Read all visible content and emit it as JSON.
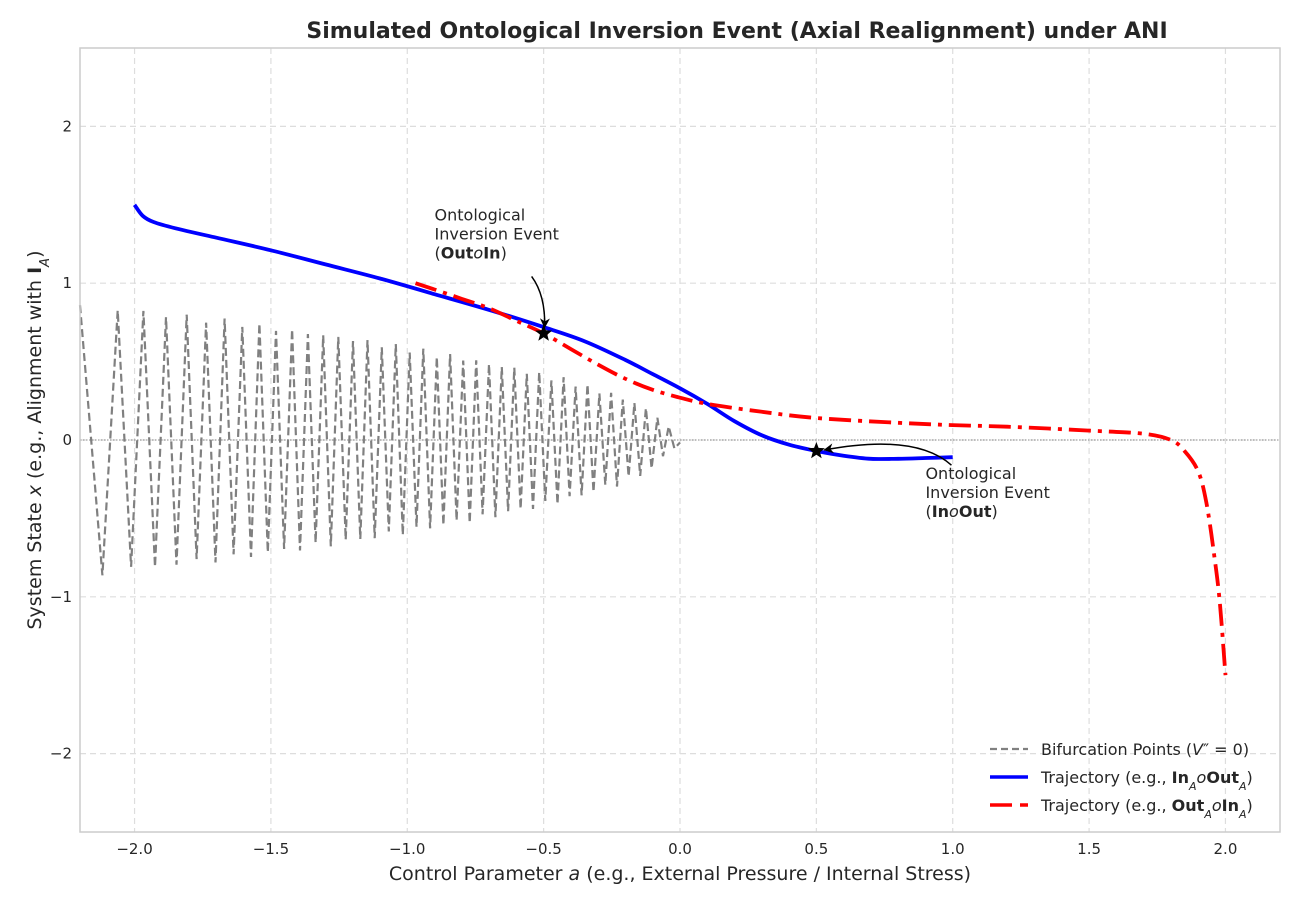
{
  "chart_data": {
    "type": "line",
    "title": "Simulated Ontological Inversion Event (Axial Realignment) under ANI",
    "xlabel": "Control Parameter a (e.g., External Pressure / Internal Stress)",
    "ylabel": "System State x (e.g., Alignment with I_A)",
    "xlim": [
      -2.2,
      2.2
    ],
    "ylim": [
      -2.5,
      2.5
    ],
    "x_ticks": [
      -2.0,
      -1.5,
      -1.0,
      -0.5,
      0.0,
      0.5,
      1.0,
      1.5,
      2.0
    ],
    "x_tick_labels": [
      "−2.0",
      "−1.5",
      "−1.0",
      "−0.5",
      "0.0",
      "0.5",
      "1.0",
      "1.5",
      "2.0"
    ],
    "y_ticks": [
      2,
      1,
      0,
      -1,
      -2
    ],
    "y_tick_labels": [
      "2",
      "1",
      "0",
      "−1",
      "−2"
    ],
    "grid": true,
    "legend_position": "bottom-right",
    "legend": [
      {
        "label": "Bifurcation Points (V″ = 0)",
        "style": "dashed",
        "color": "#808080"
      },
      {
        "label": "Trajectory (e.g., In_A∘Out_A)",
        "style": "solid",
        "color": "#0000ff"
      },
      {
        "label": "Trajectory (e.g., Out_A∘In_A)",
        "style": "dashdot",
        "color": "#ff0000"
      }
    ],
    "series": [
      {
        "name": "Bifurcation Points (V″ = 0)",
        "style": "dashed",
        "color": "#808080",
        "envelope": {
          "x": [
            -2.2,
            -2.0,
            -1.8,
            -1.6,
            -1.4,
            -1.2,
            -1.0,
            -0.8,
            -0.6,
            -0.4,
            -0.2,
            -0.1,
            0.0
          ],
          "y_upper": [
            0.86,
            0.82,
            0.78,
            0.74,
            0.69,
            0.64,
            0.58,
            0.52,
            0.45,
            0.37,
            0.26,
            0.18,
            0.0
          ],
          "y_lower": [
            -0.86,
            -0.82,
            -0.78,
            -0.74,
            -0.69,
            -0.64,
            -0.58,
            -0.52,
            -0.45,
            -0.37,
            -0.26,
            -0.18,
            0.0
          ]
        }
      },
      {
        "name": "Trajectory (e.g., In_A∘Out_A)",
        "style": "solid",
        "color": "#0000ff",
        "x": [
          -2.0,
          -1.97,
          -1.93,
          -1.85,
          -1.7,
          -1.5,
          -1.3,
          -1.1,
          -0.9,
          -0.7,
          -0.5,
          -0.35,
          -0.2,
          -0.1,
          0.0,
          0.1,
          0.2,
          0.3,
          0.4,
          0.5,
          0.6,
          0.7,
          0.8,
          0.9,
          1.0
        ],
        "y": [
          1.5,
          1.43,
          1.39,
          1.35,
          1.29,
          1.21,
          1.12,
          1.03,
          0.93,
          0.83,
          0.72,
          0.63,
          0.51,
          0.42,
          0.33,
          0.23,
          0.12,
          0.03,
          -0.03,
          -0.07,
          -0.1,
          -0.12,
          -0.12,
          -0.115,
          -0.11
        ]
      },
      {
        "name": "Trajectory (e.g., Out_A∘In_A)",
        "style": "dashdot",
        "color": "#ff0000",
        "x": [
          -0.97,
          -0.9,
          -0.8,
          -0.7,
          -0.6,
          -0.5,
          -0.4,
          -0.3,
          -0.2,
          -0.1,
          0.0,
          0.1,
          0.3,
          0.5,
          0.8,
          1.0,
          1.2,
          1.5,
          1.7,
          1.8,
          1.85,
          1.9,
          1.93,
          1.96,
          1.98,
          2.0
        ],
        "y": [
          1.0,
          0.96,
          0.9,
          0.84,
          0.76,
          0.68,
          0.58,
          0.48,
          0.39,
          0.32,
          0.27,
          0.23,
          0.18,
          0.14,
          0.11,
          0.095,
          0.085,
          0.06,
          0.04,
          0.0,
          -0.07,
          -0.2,
          -0.4,
          -0.75,
          -1.05,
          -1.5
        ]
      }
    ],
    "markers": [
      {
        "x": -0.5,
        "y": 0.68,
        "symbol": "star"
      },
      {
        "x": 0.5,
        "y": -0.07,
        "symbol": "star"
      }
    ],
    "annotations": [
      {
        "lines": [
          "Ontological",
          "Inversion Event",
          "(Out∘In)"
        ],
        "x": -0.9,
        "y": 1.4,
        "points_to": [
          -0.5,
          0.68
        ]
      },
      {
        "lines": [
          "Ontological",
          "Inversion Event",
          "(In∘Out)"
        ],
        "x": 0.9,
        "y": -0.25,
        "points_to": [
          0.5,
          -0.07
        ]
      }
    ]
  }
}
